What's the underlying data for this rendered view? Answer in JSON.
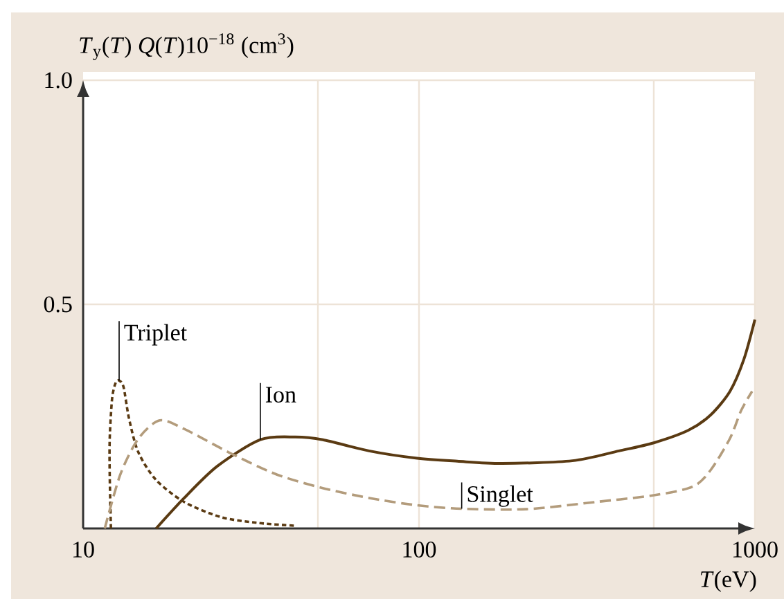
{
  "chart_data": {
    "type": "line",
    "xlabel": "*T*(eV)",
    "ylabel": "*T*$_{y}$(*T*) *Q*(*T*)10$^{−18}$ (cm$^{3}$)",
    "log": "x",
    "grid": true,
    "xlim": [
      10,
      1000
    ],
    "ylim": [
      0,
      1
    ],
    "xticks": [
      10,
      {
        "value": 50,
        "label": null
      },
      100,
      {
        "value": 500,
        "label": null
      },
      1000
    ],
    "yticks": [
      0.5,
      {
        "value": 1,
        "label": "1.0"
      }
    ],
    "series": [
      {
        "name": "Triplet",
        "color": "#5a3a12",
        "line_style": "dotted",
        "x": [
          12.1,
          12.0,
          12.0,
          12.2,
          12.5,
          12.8,
          13.2,
          13.7,
          14.6,
          16.5,
          20,
          25.8,
          33.4,
          42.8
        ],
        "values": [
          0,
          0.12,
          0.2,
          0.29,
          0.325,
          0.33,
          0.315,
          0.245,
          0.17,
          0.108,
          0.059,
          0.025,
          0.012,
          0.006
        ]
      },
      {
        "name": "Ion",
        "color": "#5a3a12",
        "line_style": "solid",
        "x": [
          16.5,
          20,
          25.1,
          33.7,
          42.8,
          51.7,
          71,
          97.8,
          130,
          177,
          286,
          394,
          500,
          634,
          738,
          843,
          927,
          1000
        ],
        "values": [
          0,
          0.068,
          0.139,
          0.198,
          0.204,
          0.198,
          0.173,
          0.157,
          0.15,
          0.145,
          0.151,
          0.173,
          0.191,
          0.219,
          0.253,
          0.306,
          0.377,
          0.466
        ]
      },
      {
        "name": "Singlet",
        "color": "#b39c7c",
        "line_style": "dashed",
        "x": [
          11.6,
          12.9,
          14.6,
          16.9,
          20,
          27.6,
          37.8,
          51.7,
          71,
          97.8,
          134,
          209,
          336,
          500,
          652,
          738,
          843,
          910,
          981
        ],
        "values": [
          0,
          0.12,
          0.2,
          0.241,
          0.222,
          0.167,
          0.12,
          0.09,
          0.068,
          0.052,
          0.044,
          0.043,
          0.059,
          0.074,
          0.093,
          0.13,
          0.201,
          0.263,
          0.306
        ]
      }
    ]
  }
}
